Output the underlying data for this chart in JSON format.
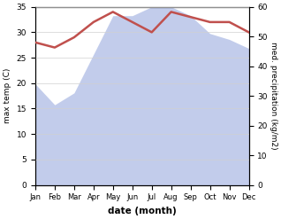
{
  "months": [
    "Jan",
    "Feb",
    "Mar",
    "Apr",
    "May",
    "Jun",
    "Jul",
    "Aug",
    "Sep",
    "Oct",
    "Nov",
    "Dec"
  ],
  "temp": [
    28,
    27,
    29,
    32,
    34,
    32,
    30,
    34,
    33,
    32,
    32,
    30
  ],
  "precip": [
    34,
    27,
    31,
    44,
    57,
    57,
    60,
    60,
    57,
    51,
    49,
    46
  ],
  "temp_color": "#c0504d",
  "precip_fill_color": "#b8c4e8",
  "title": "",
  "xlabel": "date (month)",
  "ylabel_left": "max temp (C)",
  "ylabel_right": "med. precipitation (kg/m2)",
  "ylim_left": [
    0,
    35
  ],
  "ylim_right": [
    0,
    60
  ],
  "yticks_left": [
    0,
    5,
    10,
    15,
    20,
    25,
    30,
    35
  ],
  "yticks_right": [
    0,
    10,
    20,
    30,
    40,
    50,
    60
  ],
  "bg_color": "#ffffff",
  "grid_color": "#d0d0d0"
}
